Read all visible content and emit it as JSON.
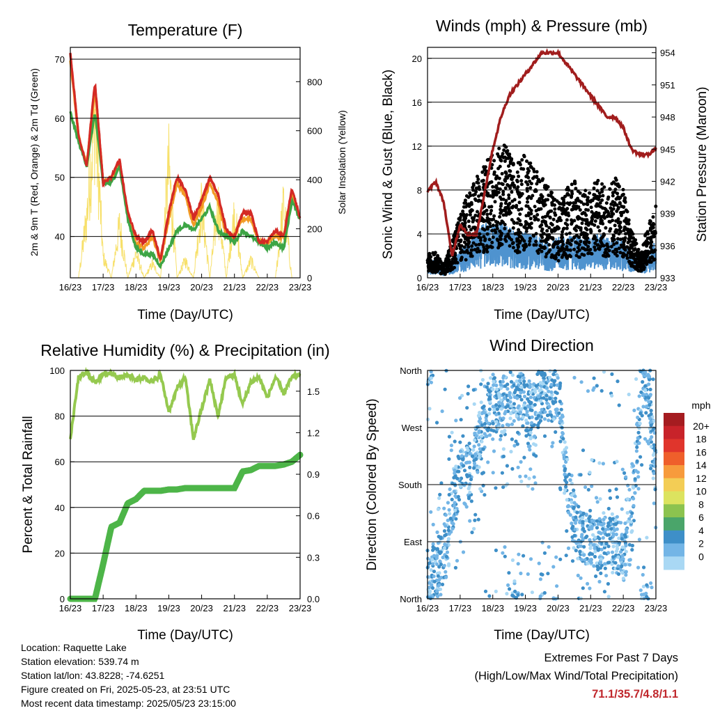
{
  "days": [
    "16/23",
    "17/23",
    "18/23",
    "19/23",
    "20/23",
    "21/23",
    "22/23",
    "23/23"
  ],
  "panels": {
    "temperature": {
      "title": "Temperature (F)",
      "ylabel_left": "2m & 9m T (Red, Orange) & 2m Td (Green)",
      "ylabel_right": "Solar Insolation (Yellow)",
      "xlabel": "Time (Day/UTC)",
      "left_ticks": [
        "40",
        "50",
        "60",
        "70"
      ],
      "right_ticks": [
        "0",
        "200",
        "400",
        "600",
        "800"
      ]
    },
    "wind": {
      "title": "Winds (mph) & Pressure (mb)",
      "ylabel_left": "Sonic Wind & Gust (Blue, Black)",
      "ylabel_right": "Station Pressure (Maroon)",
      "xlabel": "Time (Day/UTC)",
      "left_ticks": [
        "0",
        "4",
        "8",
        "12",
        "16",
        "20"
      ],
      "right_ticks": [
        "933",
        "936",
        "939",
        "942",
        "945",
        "948",
        "951",
        "954"
      ]
    },
    "humidity": {
      "title": "Relative Humidity (%) & Precipitation (in)",
      "ylabel_left": "Percent & Total Rainfall",
      "xlabel": "Time (Day/UTC)",
      "left_ticks": [
        "0",
        "20",
        "40",
        "60",
        "80",
        "100"
      ],
      "right_ticks": [
        "0.0",
        "0.3",
        "0.6",
        "0.9",
        "1.2",
        "1.5"
      ]
    },
    "direction": {
      "title": "Wind Direction",
      "ylabel_left": "Direction (Colored By Speed)",
      "xlabel": "Time (Day/UTC)",
      "dir_ticks": [
        "North",
        "East",
        "South",
        "West",
        "North"
      ],
      "legend_title": "mph",
      "legend_labels": [
        "20+",
        "18",
        "16",
        "14",
        "12",
        "10",
        "8",
        "6",
        "4",
        "2",
        "0"
      ],
      "legend_colors": [
        "#a51c20",
        "#c8232a",
        "#e0352c",
        "#ef5f2b",
        "#f79b3c",
        "#f3cd55",
        "#dce35f",
        "#8cc34f",
        "#4aa56a",
        "#3e8fc8",
        "#73b5e6",
        "#a9d8f4"
      ]
    }
  },
  "colors": {
    "temp2m": "#d42a25",
    "temp9m": "#f29b25",
    "dewpoint": "#3da545",
    "solar": "#f7e06a",
    "gust": "#000000",
    "wind": "#4f93cf",
    "pressure": "#a11d1d",
    "rh": "#95c94f",
    "precip": "#4db548"
  },
  "chart_data": [
    {
      "type": "line",
      "title": "Temperature (F)",
      "xlabel": "Time (Day/UTC)",
      "ylabel": "2m & 9m T (Red, Orange) & 2m Td (Green)",
      "ylabel_right": "Solar Insolation (Yellow)",
      "ylim": [
        33,
        72
      ],
      "ylim_right": [
        0,
        940
      ],
      "x": [
        0,
        0.25,
        0.5,
        0.75,
        1,
        1.25,
        1.5,
        1.75,
        2,
        2.25,
        2.5,
        2.75,
        3,
        3.25,
        3.5,
        3.75,
        4,
        4.25,
        4.5,
        4.75,
        5,
        5.25,
        5.5,
        5.75,
        6,
        6.25,
        6.5,
        6.75,
        7
      ],
      "series": [
        {
          "name": "2m T",
          "values": [
            71,
            57,
            52,
            66,
            49,
            50,
            53,
            44,
            40,
            39,
            41,
            36,
            44,
            50,
            48,
            43,
            46,
            50,
            47,
            41,
            40,
            44,
            44,
            39,
            39,
            41,
            40,
            48,
            43
          ]
        },
        {
          "name": "9m T",
          "values": [
            70,
            57,
            52,
            65,
            49,
            50,
            52,
            44,
            39,
            38,
            40,
            36,
            43,
            49,
            47,
            42,
            45,
            49,
            46,
            40,
            40,
            43,
            43,
            39,
            39,
            40,
            40,
            47,
            43
          ]
        },
        {
          "name": "2m Td",
          "values": [
            61,
            56,
            52,
            61,
            49,
            49,
            52,
            43,
            38,
            37,
            37,
            35,
            38,
            41,
            42,
            41,
            43,
            45,
            41,
            40,
            39,
            41,
            40,
            39,
            38,
            39,
            38,
            46,
            43
          ]
        },
        {
          "name": "Solar",
          "values": [
            0,
            0,
            350,
            940,
            120,
            0,
            300,
            0,
            140,
            0,
            80,
            0,
            640,
            0,
            100,
            0,
            420,
            0,
            430,
            0,
            370,
            0,
            100,
            0,
            0,
            0,
            420,
            0,
            0
          ]
        }
      ]
    },
    {
      "type": "scatter",
      "title": "Winds (mph) & Pressure (mb)",
      "xlabel": "Time (Day/UTC)",
      "ylabel": "Sonic Wind & Gust (Blue, Black)",
      "ylabel_right": "Station Pressure (Maroon)",
      "ylim": [
        0,
        21
      ],
      "ylim_right": [
        933,
        954.5
      ],
      "x": [
        0,
        0.25,
        0.5,
        0.75,
        1,
        1.25,
        1.5,
        1.75,
        2,
        2.25,
        2.5,
        2.75,
        3,
        3.25,
        3.5,
        3.75,
        4,
        4.25,
        4.5,
        4.75,
        5,
        5.25,
        5.5,
        5.75,
        6,
        6.25,
        6.5,
        6.75,
        7
      ],
      "series": [
        {
          "name": "Gust",
          "values": [
            2,
            2,
            1,
            3,
            5,
            7,
            8,
            9,
            10,
            11,
            10,
            9,
            10,
            9,
            8,
            7,
            6,
            7,
            8,
            7,
            7,
            8,
            7,
            8,
            7,
            4,
            2,
            4,
            6
          ]
        },
        {
          "name": "Wind",
          "values": [
            1,
            1,
            0.5,
            1,
            1.5,
            2,
            2.5,
            3,
            3,
            3,
            2.8,
            2.5,
            2.5,
            2.3,
            2.2,
            2,
            2.2,
            2.2,
            2.4,
            2.2,
            2.2,
            2.5,
            2.2,
            2.2,
            2,
            1.5,
            1,
            1.5,
            2
          ]
        },
        {
          "name": "Pressure",
          "values": [
            941,
            942,
            940,
            935,
            938,
            937,
            937,
            941,
            945,
            948,
            950,
            951,
            952,
            953,
            954,
            954,
            954,
            953,
            952,
            951,
            950,
            949,
            948,
            948,
            947,
            945,
            944.5,
            944.5,
            945
          ]
        }
      ]
    },
    {
      "type": "line",
      "title": "Relative Humidity (%) & Precipitation (in)",
      "xlabel": "Time (Day/UTC)",
      "ylabel": "Percent & Total Rainfall",
      "ylim": [
        0,
        100
      ],
      "ylim_right": [
        0,
        1.65
      ],
      "x": [
        0,
        0.25,
        0.5,
        0.75,
        1,
        1.25,
        1.5,
        1.75,
        2,
        2.25,
        2.5,
        2.75,
        3,
        3.25,
        3.5,
        3.75,
        4,
        4.25,
        4.5,
        4.75,
        5,
        5.25,
        5.5,
        5.75,
        6,
        6.25,
        6.5,
        6.75,
        7
      ],
      "series": [
        {
          "name": "RH",
          "values": [
            70,
            97,
            99,
            95,
            98,
            99,
            97,
            98,
            96,
            97,
            95,
            98,
            82,
            92,
            97,
            70,
            83,
            96,
            80,
            97,
            98,
            85,
            95,
            97,
            88,
            97,
            90,
            97,
            98
          ]
        },
        {
          "name": "Total Rainfall",
          "values": [
            0,
            0,
            0,
            0,
            0.25,
            0.52,
            0.55,
            0.69,
            0.72,
            0.78,
            0.78,
            0.78,
            0.79,
            0.79,
            0.8,
            0.8,
            0.8,
            0.8,
            0.8,
            0.8,
            0.8,
            0.92,
            0.93,
            0.96,
            0.96,
            0.96,
            0.97,
            0.99,
            1.04
          ]
        }
      ]
    },
    {
      "type": "scatter",
      "title": "Wind Direction",
      "xlabel": "Time (Day/UTC)",
      "ylabel": "Direction (Colored By Speed)",
      "ylim": [
        0,
        360
      ],
      "x": [
        0,
        0.25,
        0.5,
        0.75,
        1,
        1.25,
        1.5,
        1.75,
        2,
        2.25,
        2.5,
        2.75,
        3,
        3.25,
        3.5,
        3.75,
        4,
        4.25,
        4.5,
        4.75,
        5,
        5.25,
        5.5,
        5.75,
        6,
        6.25,
        6.5,
        6.75,
        7
      ],
      "series": [
        {
          "name": "Direction",
          "values": [
            20,
            40,
            70,
            150,
            190,
            200,
            230,
            290,
            310,
            300,
            320,
            330,
            300,
            290,
            330,
            320,
            330,
            200,
            120,
            100,
            90,
            80,
            100,
            90,
            70,
            90,
            330,
            340,
            200
          ]
        }
      ]
    }
  ],
  "extremes": {
    "heading": "Extremes For Past 7 Days",
    "subheading": "(High/Low/Max Wind/Total Precipitation)",
    "value": "71.1/35.7/4.8/1.1"
  },
  "station": {
    "location": "Location: Raquette Lake",
    "elevation": "Station elevation: 539.74 m",
    "latlon": "Station lat/lon: 43.8228; -74.6251",
    "created": "Figure created on Fri, 2025-05-23, at 23:51 UTC",
    "recent": "Most recent data timestamp: 2025/05/23 23:15:00"
  }
}
